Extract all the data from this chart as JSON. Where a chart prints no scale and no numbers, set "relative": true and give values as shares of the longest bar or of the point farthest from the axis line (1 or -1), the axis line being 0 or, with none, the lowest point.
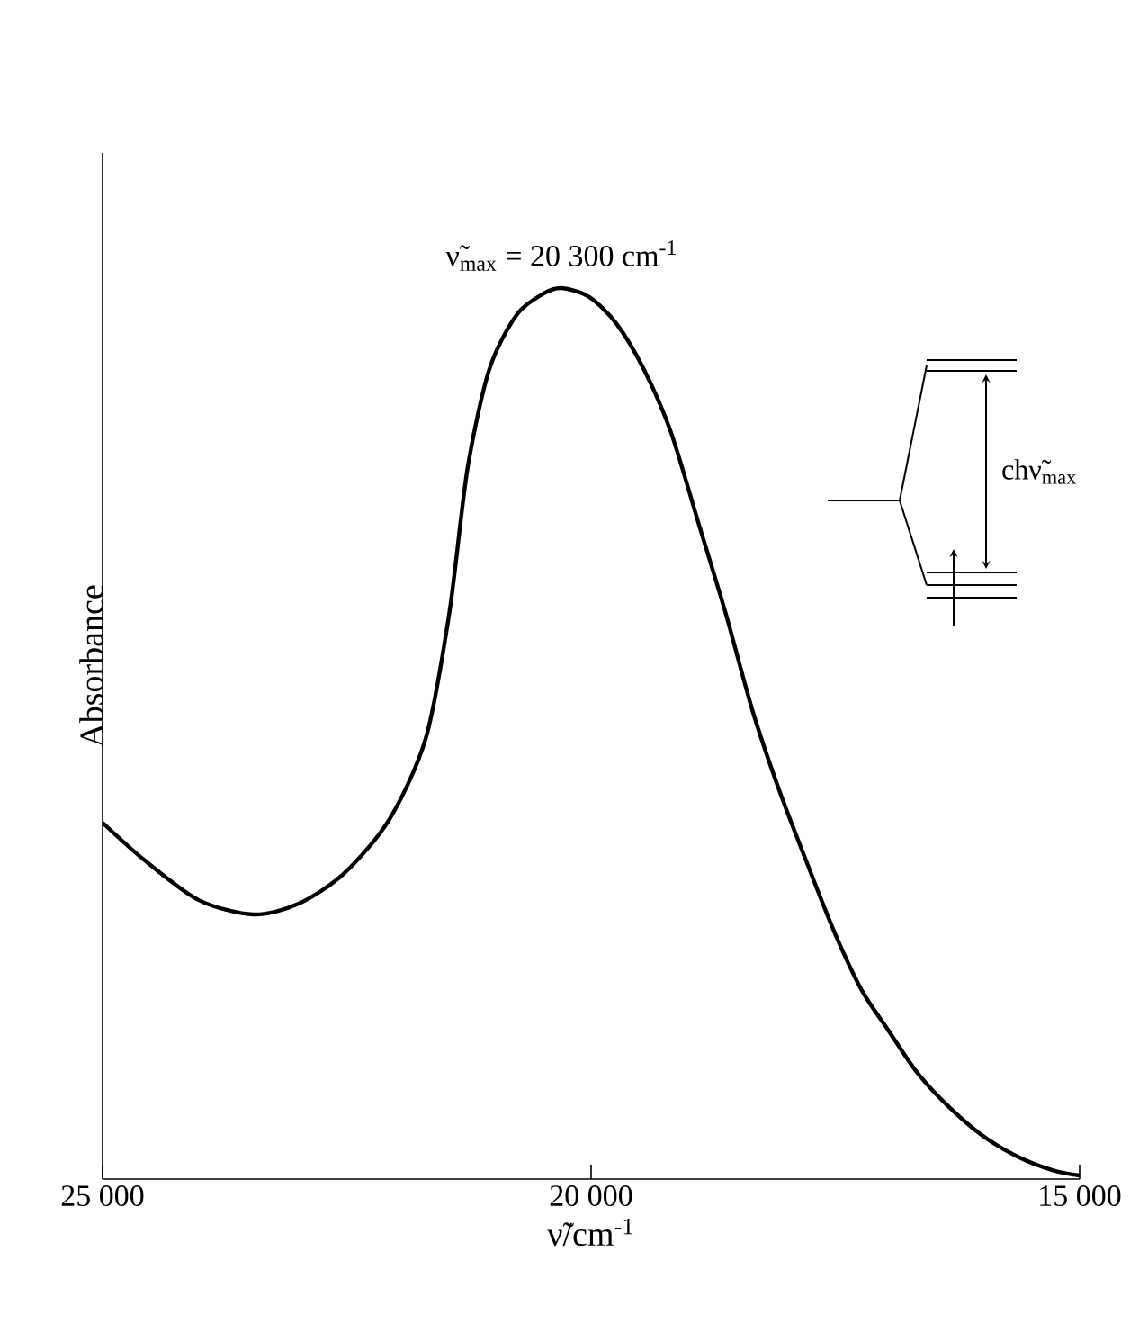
{
  "chart_data": {
    "type": "line",
    "relative": true,
    "xlabel": "ν̃/cm$^{-1}$",
    "ylabel": "Absorbance",
    "xlim": [
      25000,
      15000
    ],
    "xticks": [
      {
        "value": 25000,
        "label": "25 000"
      },
      {
        "value": 20000,
        "label": "20 000"
      },
      {
        "value": 15000,
        "label": "15 000"
      }
    ],
    "annotations": [
      {
        "text": "ν̃$_{max}$ = 20 300 cm$^{-1}$",
        "x": 20300,
        "y": 1.0
      },
      "chν̃$_{max}$"
    ],
    "series": [
      {
        "color": "#000000",
        "x": [
          25000,
          24572,
          24015,
          23457,
          22993,
          22528,
          22063,
          21691,
          21450,
          21264,
          21041,
          20762,
          20483,
          20300,
          20019,
          19740,
          19461,
          19182,
          18903,
          18625,
          18346,
          18067,
          17788,
          17509,
          17230,
          16952,
          16673,
          16394,
          16022,
          15651,
          15279,
          15000
        ],
        "values": [
          0.4,
          0.358,
          0.313,
          0.297,
          0.309,
          0.343,
          0.404,
          0.495,
          0.636,
          0.798,
          0.909,
          0.97,
          0.994,
          1.0,
          0.99,
          0.96,
          0.909,
          0.838,
          0.737,
          0.636,
          0.525,
          0.434,
          0.354,
          0.277,
          0.212,
          0.166,
          0.121,
          0.087,
          0.051,
          0.026,
          0.01,
          0.004
        ]
      }
    ]
  }
}
